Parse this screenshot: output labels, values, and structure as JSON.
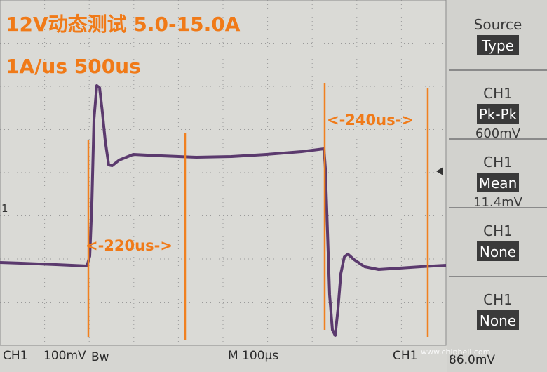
{
  "annotations": {
    "title": "12V动态测试 5.0-15.0A",
    "subtitle": "1A/us 500us",
    "span_1": "<-220us->",
    "span_2": "<-240us->"
  },
  "menu": [
    {
      "top": "Source",
      "label": "Type"
    },
    {
      "top": "CH1",
      "label": "Pk-Pk",
      "value": "600mV"
    },
    {
      "top": "CH1",
      "label": "Mean",
      "value": "11.4mV"
    },
    {
      "top": "CH1",
      "label": "None"
    },
    {
      "top": "CH1",
      "label": "None"
    }
  ],
  "status": {
    "channel": "CH1",
    "scale": "100mV",
    "bandwidth": "Bw",
    "timebase": "M 100µs",
    "trigger_channel": "CH1",
    "trigger_level": "86.0mV"
  },
  "marker": "1",
  "watermark": "www.chiphell.com"
}
